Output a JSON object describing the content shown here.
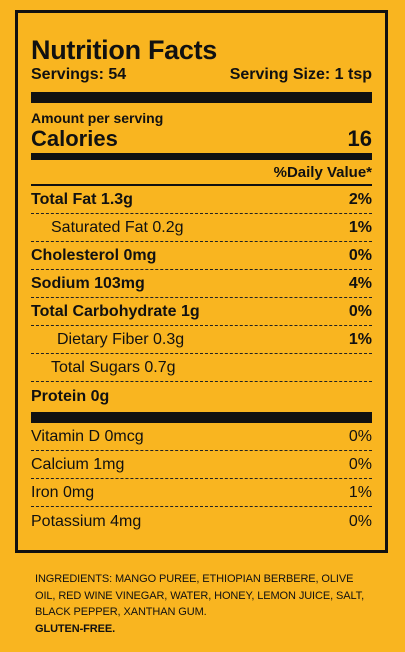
{
  "title": "Nutrition Facts",
  "servings": "Servings: 54",
  "serving_size": "Serving Size: 1 tsp",
  "amount_per_serving": "Amount per serving",
  "calories_label": "Calories",
  "calories_value": "16",
  "daily_value_header": "%Daily Value*",
  "nutrients": [
    {
      "label": "Total Fat 1.3g",
      "pct": "2%"
    },
    {
      "label": "Saturated Fat 0.2g",
      "pct": "1%"
    },
    {
      "label": "Cholesterol 0mg",
      "pct": "0%"
    },
    {
      "label": "Sodium 103mg",
      "pct": "4%"
    },
    {
      "label": "Total Carbohydrate 1g",
      "pct": "0%"
    },
    {
      "label": "Dietary Fiber 0.3g",
      "pct": "1%"
    },
    {
      "label": "Total Sugars 0.7g",
      "pct": ""
    },
    {
      "label": "Protein 0g",
      "pct": ""
    }
  ],
  "vitamins": [
    {
      "label": "Vitamin D 0mcg",
      "pct": "0%"
    },
    {
      "label": "Calcium 1mg",
      "pct": "0%"
    },
    {
      "label": "Iron 0mg",
      "pct": "1%"
    },
    {
      "label": "Potassium 4mg",
      "pct": "0%"
    }
  ],
  "ingredients_text": "INGREDIENTS:  MANGO PUREE, ETHIOPIAN BERBERE, OLIVE OIL, RED WINE VINEGAR, WATER, HONEY, LEMON JUICE, SALT, BLACK PEPPER, XANTHAN GUM.",
  "gluten_free": "GLUTEN-FREE.",
  "colors": {
    "background": "#f9b520",
    "ink": "#111111"
  }
}
